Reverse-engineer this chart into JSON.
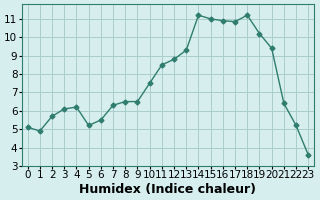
{
  "x": [
    0,
    1,
    2,
    3,
    4,
    5,
    6,
    7,
    8,
    9,
    10,
    11,
    12,
    13,
    14,
    15,
    16,
    17,
    18,
    19,
    20,
    21,
    22,
    23
  ],
  "y": [
    5.1,
    4.9,
    5.7,
    6.1,
    6.2,
    5.2,
    5.5,
    6.3,
    6.5,
    6.5,
    7.5,
    8.5,
    8.8,
    9.3,
    11.2,
    11.0,
    10.9,
    10.85,
    11.2,
    10.2,
    9.4,
    6.4,
    5.2,
    3.6
  ],
  "xlabel": "Humidex (Indice chaleur)",
  "xlim": [
    -0.5,
    23.5
  ],
  "ylim": [
    3,
    11.8
  ],
  "yticks": [
    3,
    4,
    5,
    6,
    7,
    8,
    9,
    10,
    11
  ],
  "xticks": [
    0,
    1,
    2,
    3,
    4,
    5,
    6,
    7,
    8,
    9,
    10,
    11,
    12,
    13,
    14,
    15,
    16,
    17,
    18,
    19,
    20,
    21,
    22,
    23
  ],
  "line_color": "#2e7d6e",
  "marker_color": "#2e7d6e",
  "bg_color": "#d6eeee",
  "grid_color": "#aacccc",
  "xlabel_fontsize": 9,
  "tick_fontsize": 7.5
}
